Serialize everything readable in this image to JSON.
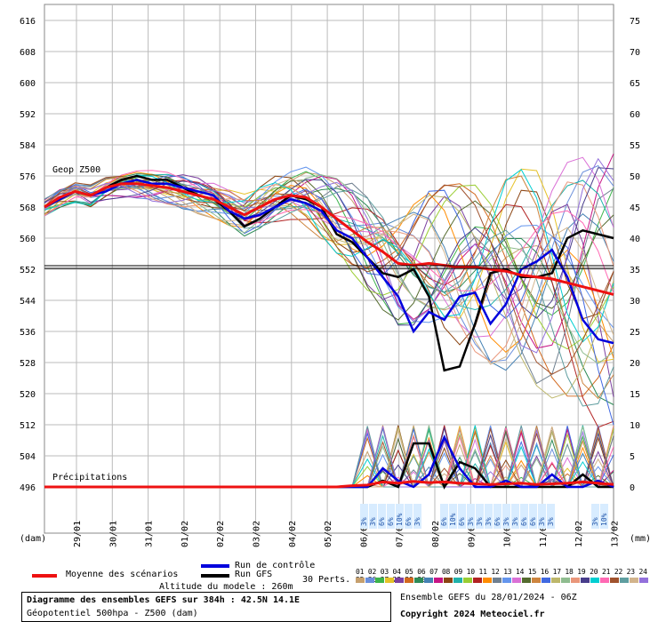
{
  "chart_data": {
    "type": "line",
    "title": "Diagramme des ensembles GEFS sur 384h : 42.5N 14.1E",
    "subtitle": "Géopotentiel 500hpa - Z500 (dam)",
    "left_axis": {
      "label": "(dam)",
      "ticks": [
        616,
        608,
        600,
        592,
        584,
        576,
        568,
        560,
        552,
        544,
        536,
        528,
        520,
        512,
        504,
        496
      ],
      "range": [
        496,
        620
      ]
    },
    "right_axis": {
      "label": "(mm)",
      "ticks": [
        75,
        70,
        65,
        60,
        55,
        50,
        45,
        40,
        35,
        30,
        25,
        20,
        15,
        10,
        5,
        0
      ]
    },
    "x_labels": [
      "29/01",
      "30/01",
      "31/01",
      "01/02",
      "02/02",
      "03/02",
      "04/02",
      "05/02",
      "06/02",
      "07/02",
      "08/02",
      "09/02",
      "10/02",
      "11/02",
      "12/02",
      "13/02"
    ],
    "section_labels": {
      "geop": "Geop Z500",
      "precip": "Précipitations"
    },
    "reference_line": 552,
    "mean_series": {
      "name": "Moyenne des scénarios",
      "color": "#ee1111",
      "values": [
        568,
        570.5,
        572,
        571,
        573,
        574,
        574,
        573.5,
        573,
        572,
        571,
        570,
        568,
        566,
        568,
        570,
        571,
        570.5,
        568,
        565,
        562,
        559,
        556.5,
        553.5,
        553,
        553.5,
        553,
        552.5,
        552.5,
        552,
        551.5,
        550.5,
        550,
        549.5,
        548.5,
        547.5,
        546.5,
        545.5
      ]
    },
    "control_series": {
      "name": "Run de contrôle",
      "color": "#0000dd",
      "values": [
        568,
        570,
        572,
        571,
        572,
        574,
        575,
        574,
        574,
        573,
        572,
        571,
        567,
        565,
        566,
        568,
        570,
        569,
        567,
        562,
        560,
        555,
        550,
        545,
        536,
        541,
        539,
        545,
        546,
        538,
        543,
        552,
        554,
        557,
        550,
        539,
        534,
        533
      ]
    },
    "gfs_series": {
      "name": "Run GFS",
      "color": "#000000",
      "values": [
        568,
        570,
        572,
        571,
        573,
        575,
        576,
        575,
        575,
        573,
        571,
        570,
        567,
        563,
        565,
        568,
        571,
        570,
        568,
        561,
        559,
        555,
        551,
        550,
        552,
        545,
        526,
        527,
        538,
        551,
        552,
        550,
        550,
        551,
        560,
        562,
        561,
        560
      ]
    },
    "precip_mean_values": [
      0,
      0,
      0,
      0,
      0,
      0,
      0,
      0,
      0,
      0,
      0,
      0,
      0,
      0,
      0,
      0,
      0,
      0,
      0,
      0,
      0.2,
      0.3,
      0.8,
      0.6,
      0.9,
      0.7,
      0.8,
      0.6,
      0.5,
      0.4,
      0.5,
      0.6,
      0.4,
      0.5,
      0.6,
      0.8,
      0.6,
      0.4
    ],
    "precip_control_values": [
      0,
      0,
      0,
      0,
      0,
      0,
      0,
      0,
      0,
      0,
      0,
      0,
      0,
      0,
      0,
      0,
      0,
      0,
      0,
      0,
      0,
      0,
      3,
      1,
      0,
      2,
      8,
      3,
      0,
      0,
      1,
      0,
      0,
      2,
      0,
      0,
      1,
      0
    ],
    "precip_gfs_values": [
      0,
      0,
      0,
      0,
      0,
      0,
      0,
      0,
      0,
      0,
      0,
      0,
      0,
      0,
      0,
      0,
      0,
      0,
      0,
      0,
      0,
      0,
      1,
      0,
      7,
      7,
      0,
      4,
      3,
      0,
      0,
      0,
      0,
      0,
      0,
      2,
      0,
      0
    ],
    "snow_labels_a": [
      "3%",
      "3%",
      "6%",
      "6%",
      "10%",
      "6%",
      "3%"
    ],
    "snow_labels_b": [
      "6%",
      "10%",
      "6%",
      "3%",
      "3%",
      "3%",
      "6%",
      "3%",
      "3%",
      "6%",
      "6%",
      "3%",
      "3%"
    ],
    "snow_labels_c": [
      "3%",
      "10%"
    ],
    "member_colors": [
      "#c6a06e",
      "#6a8fdb",
      "#3cb44b",
      "#e6c229",
      "#7b3fa0",
      "#d2691e",
      "#2e8b57",
      "#4682b4",
      "#c71585",
      "#8b4513",
      "#20b2aa",
      "#9acd32",
      "#b22222",
      "#ff8c00",
      "#708090",
      "#6495ed",
      "#da70d6",
      "#556b2f",
      "#cd853f",
      "#4169e1",
      "#bdb76b",
      "#8fbc8f",
      "#e9967a",
      "#483d8b",
      "#00ced1",
      "#ff69b4",
      "#a0522d",
      "#5f9ea0",
      "#d2b48c",
      "#9370db"
    ]
  },
  "legend": {
    "mean_label": "Moyenne des scénarios",
    "control_label": "Run de contrôle",
    "gfs_label": "Run GFS",
    "perts_label": "30 Perts.",
    "altitude_label": "Altitude du modele : 260m",
    "member_numbers": "01 02 03 04 05 06 07 08 09 10 11 12 13 14 15 16 17 18 19 20 21 22 23 24 25 26 27 28 29 30",
    "swatch_colors": [
      "#c6a06e",
      "#6a8fdb",
      "#3cb44b",
      "#e6c229",
      "#7b3fa0",
      "#d2691e",
      "#2e8b57",
      "#4682b4",
      "#c71585",
      "#8b4513",
      "#20b2aa",
      "#9acd32",
      "#b22222",
      "#ff8c00",
      "#708090",
      "#6495ed",
      "#da70d6",
      "#556b2f",
      "#cd853f",
      "#4169e1",
      "#bdb76b",
      "#8fbc8f",
      "#e9967a",
      "#483d8b",
      "#00ced1",
      "#ff69b4",
      "#a0522d",
      "#5f9ea0",
      "#d2b48c",
      "#9370db"
    ]
  },
  "footer": {
    "title": "Diagramme des ensembles GEFS sur 384h : 42.5N 14.1E",
    "subtitle": "Géopotentiel 500hpa - Z500 (dam)",
    "run": "Ensemble GEFS du 28/01/2024 - 06Z",
    "copyright": "Copyright 2024 Meteociel.fr"
  }
}
